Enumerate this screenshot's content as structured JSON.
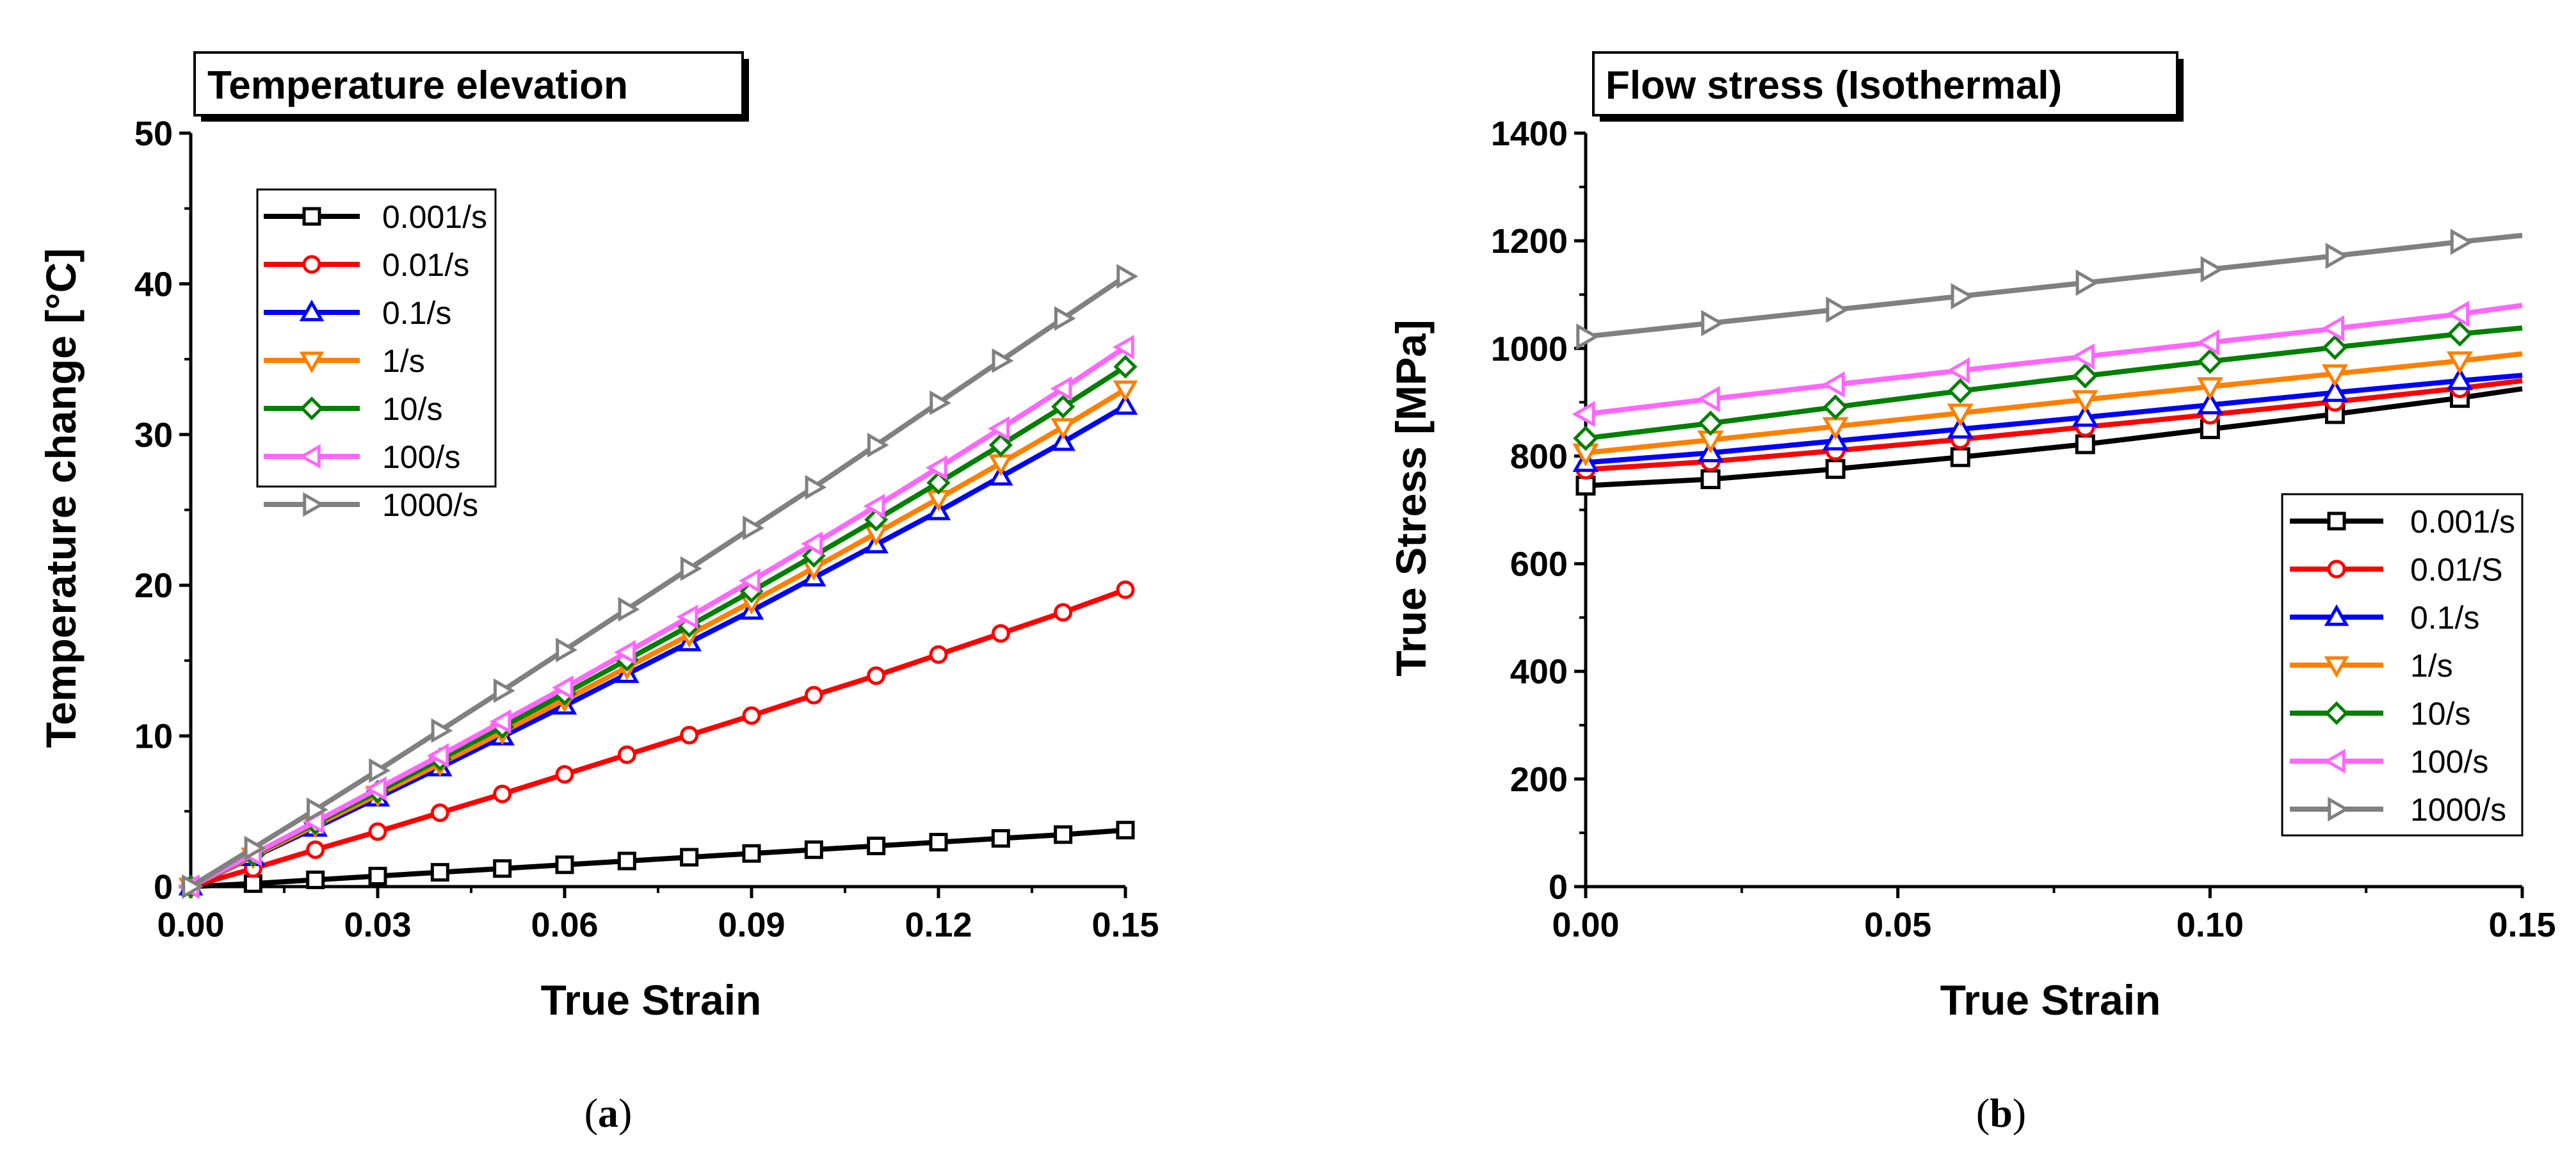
{
  "chart_data": [
    {
      "type": "line",
      "title": "Temperature elevation",
      "xlabel": "True Strain",
      "ylabel": "Temperature change [°C]",
      "xlim": [
        0,
        0.15
      ],
      "ylim": [
        0,
        50
      ],
      "xticks": [
        "0.00",
        "0.03",
        "0.06",
        "0.09",
        "0.12",
        "0.15"
      ],
      "yticks": [
        "0",
        "10",
        "20",
        "30",
        "40",
        "50"
      ],
      "legend_position": "top-left",
      "panel_label": "(a)",
      "x": [
        0,
        0.01,
        0.02,
        0.03,
        0.04,
        0.05,
        0.06,
        0.07,
        0.08,
        0.09,
        0.1,
        0.11,
        0.12,
        0.13,
        0.14,
        0.15
      ],
      "series": [
        {
          "name": "0.001/s",
          "color": "#000000",
          "marker": "square",
          "values": [
            0,
            0.2,
            0.45,
            0.7,
            0.95,
            1.2,
            1.45,
            1.7,
            1.95,
            2.2,
            2.45,
            2.7,
            2.95,
            3.2,
            3.45,
            3.75
          ]
        },
        {
          "name": "0.01/s",
          "color": "#ff0000",
          "marker": "circle",
          "values": [
            0,
            1.2,
            2.45,
            3.65,
            4.9,
            6.15,
            7.45,
            8.75,
            10.05,
            11.35,
            12.7,
            14.0,
            15.4,
            16.8,
            18.2,
            19.7
          ]
        },
        {
          "name": "0.1/s",
          "color": "#0000ff",
          "marker": "triangle-up",
          "values": [
            0,
            1.95,
            3.9,
            5.9,
            7.9,
            9.95,
            12.0,
            14.1,
            16.2,
            18.3,
            20.5,
            22.7,
            24.9,
            27.2,
            29.5,
            31.9
          ]
        },
        {
          "name": "1/s",
          "color": "#ff7f00",
          "marker": "triangle-down",
          "values": [
            0,
            2.0,
            4.05,
            6.1,
            8.15,
            10.25,
            12.4,
            14.55,
            16.7,
            18.9,
            21.15,
            23.45,
            25.75,
            28.1,
            30.5,
            33.0
          ]
        },
        {
          "name": "10/s",
          "color": "#008000",
          "marker": "diamond",
          "values": [
            0,
            2.1,
            4.2,
            6.3,
            8.45,
            10.6,
            12.8,
            15.05,
            17.3,
            19.6,
            21.95,
            24.35,
            26.8,
            29.3,
            31.85,
            34.5
          ]
        },
        {
          "name": "100/s",
          "color": "#ff66ff",
          "marker": "triangle-left",
          "values": [
            0,
            2.15,
            4.3,
            6.5,
            8.7,
            10.95,
            13.2,
            15.55,
            17.9,
            20.3,
            22.75,
            25.25,
            27.8,
            30.4,
            33.05,
            35.8
          ]
        },
        {
          "name": "1000/s",
          "color": "#808080",
          "marker": "triangle-right",
          "values": [
            0,
            2.55,
            5.1,
            7.7,
            10.35,
            13.0,
            15.7,
            18.4,
            21.1,
            23.8,
            26.5,
            29.3,
            32.1,
            34.9,
            37.7,
            40.5
          ]
        }
      ]
    },
    {
      "type": "line",
      "title": "Flow stress (Isothermal)",
      "xlabel": "True Strain",
      "ylabel": "True Stress [MPa]",
      "xlim": [
        0,
        0.15
      ],
      "ylim": [
        0,
        1400
      ],
      "xticks": [
        "0.00",
        "0.05",
        "0.10",
        "0.15"
      ],
      "yticks": [
        "0",
        "200",
        "400",
        "600",
        "800",
        "1000",
        "1200",
        "1400"
      ],
      "legend_position": "bottom-right",
      "panel_label": "(b)",
      "x": [
        0,
        0.02,
        0.04,
        0.06,
        0.08,
        0.1,
        0.12,
        0.14,
        0.15
      ],
      "markers_at": [
        0,
        0.02,
        0.04,
        0.06,
        0.08,
        0.1,
        0.12,
        0.14
      ],
      "series": [
        {
          "name": "0.001/s",
          "color": "#000000",
          "marker": "square",
          "values": [
            745,
            757,
            776,
            798,
            822,
            850,
            878,
            908,
            925
          ]
        },
        {
          "name": "0.01/S",
          "color": "#ff0000",
          "marker": "circle",
          "values": [
            775,
            790,
            810,
            831,
            854,
            877,
            901,
            926,
            940
          ]
        },
        {
          "name": "0.1/s",
          "color": "#0000ff",
          "marker": "triangle-up",
          "values": [
            788,
            806,
            828,
            850,
            872,
            895,
            918,
            940,
            950
          ]
        },
        {
          "name": "1/s",
          "color": "#ff7f00",
          "marker": "triangle-down",
          "values": [
            806,
            830,
            855,
            880,
            905,
            929,
            953,
            977,
            990
          ]
        },
        {
          "name": "10/s",
          "color": "#008000",
          "marker": "diamond",
          "values": [
            833,
            861,
            891,
            921,
            949,
            976,
            1002,
            1027,
            1038
          ]
        },
        {
          "name": "100/s",
          "color": "#ff66ff",
          "marker": "triangle-left",
          "values": [
            878,
            906,
            933,
            959,
            985,
            1011,
            1037,
            1064,
            1080
          ]
        },
        {
          "name": "1000/s",
          "color": "#808080",
          "marker": "triangle-right",
          "values": [
            1022,
            1047,
            1072,
            1097,
            1122,
            1147,
            1172,
            1198,
            1210
          ]
        }
      ]
    }
  ]
}
